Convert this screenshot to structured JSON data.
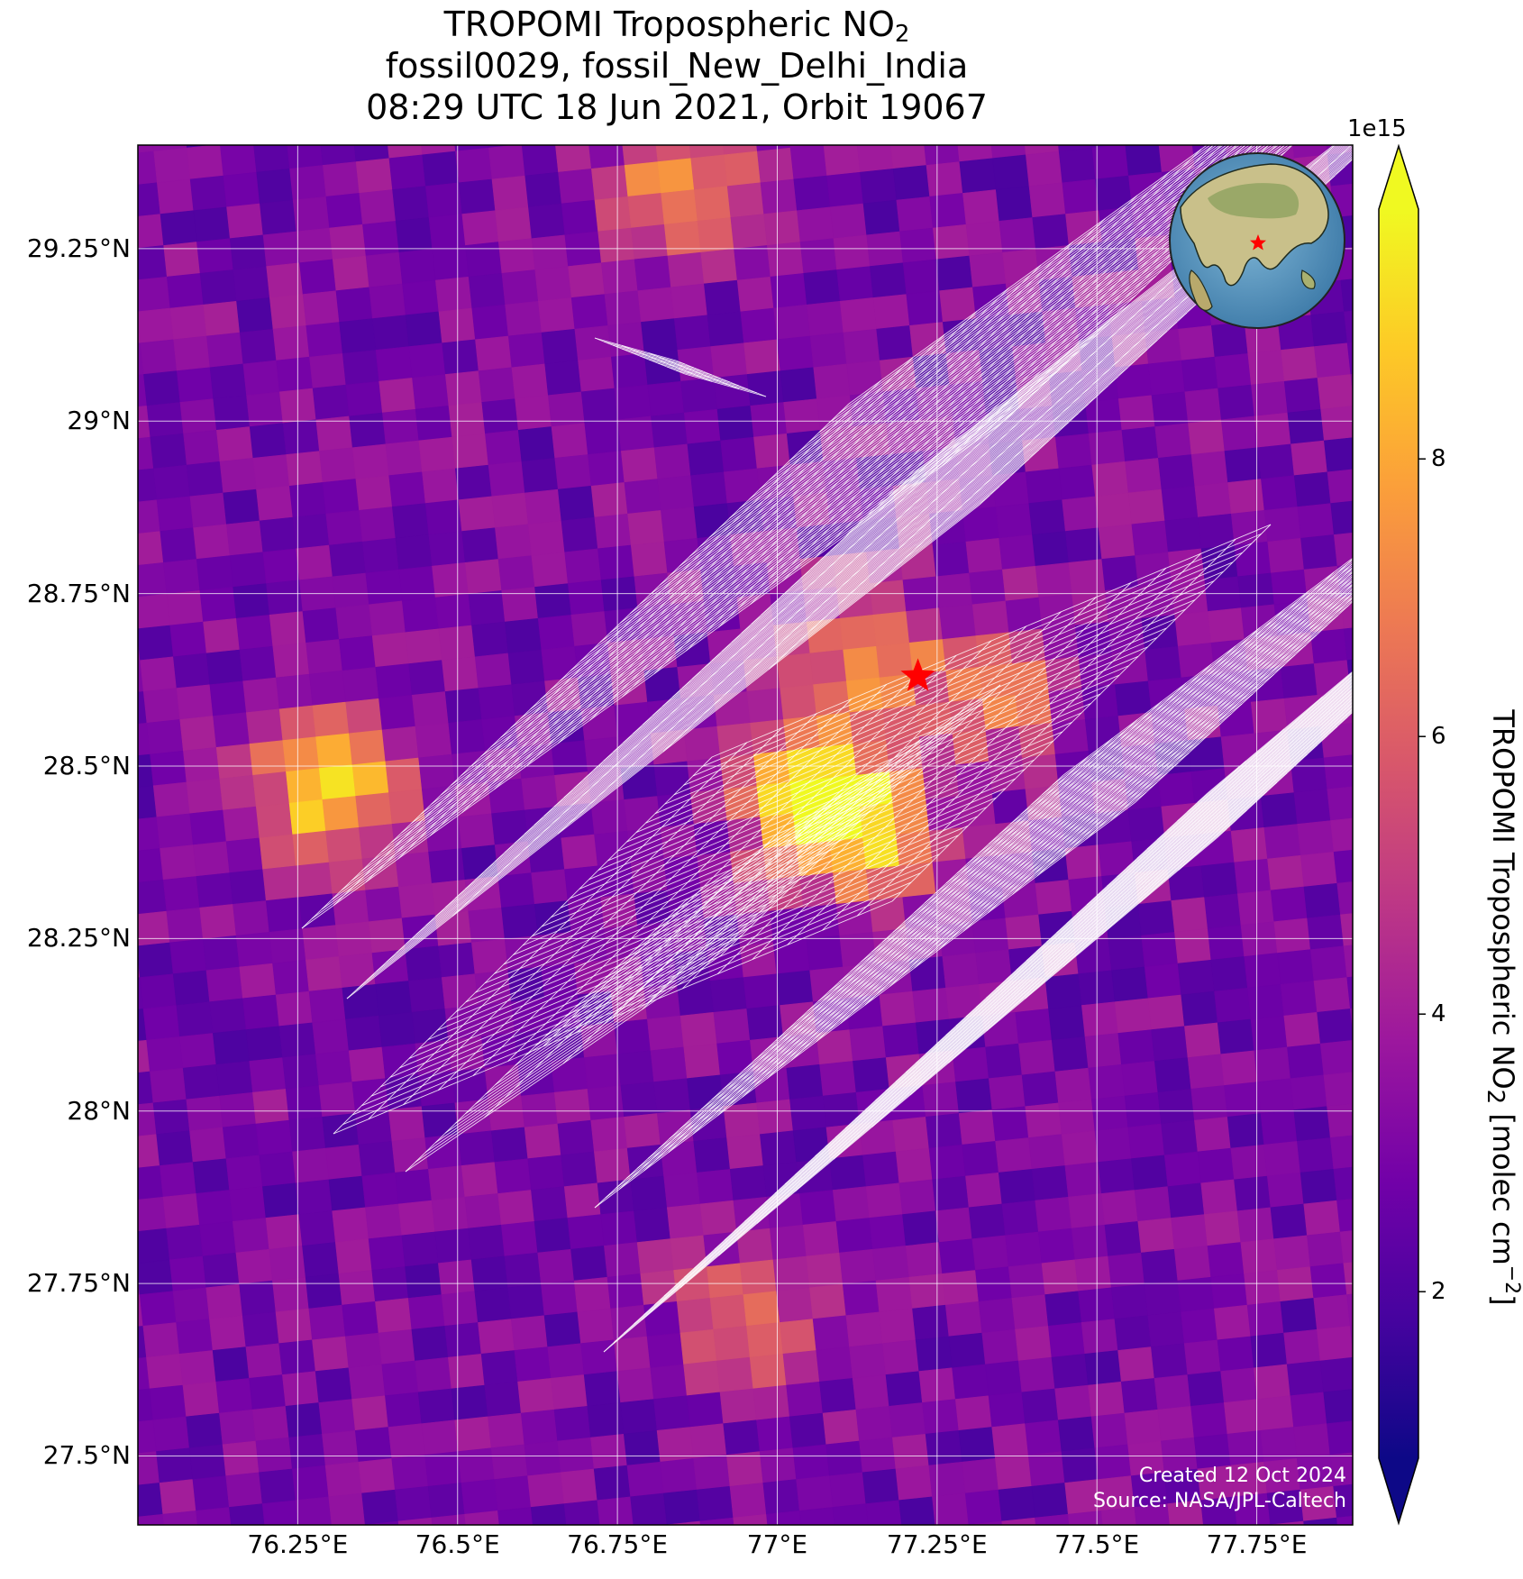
{
  "title": {
    "line1_prefix": "TROPOMI Tropospheric NO",
    "line1_sub": "2",
    "line2": "fossil0029, fossil_New_Delhi_India",
    "line3": "08:29 UTC 18 Jun 2021, Orbit 19067"
  },
  "map": {
    "lat_range": [
      27.4,
      29.4
    ],
    "lon_range": [
      76.0,
      77.9
    ],
    "lat_ticks": [
      {
        "value": 29.25,
        "label": "29.25°N"
      },
      {
        "value": 29.0,
        "label": "29°N"
      },
      {
        "value": 28.75,
        "label": "28.75°N"
      },
      {
        "value": 28.5,
        "label": "28.5°N"
      },
      {
        "value": 28.25,
        "label": "28.25°N"
      },
      {
        "value": 28.0,
        "label": "28°N"
      },
      {
        "value": 27.75,
        "label": "27.75°N"
      },
      {
        "value": 27.5,
        "label": "27.5°N"
      }
    ],
    "lon_ticks": [
      {
        "value": 76.25,
        "label": "76.25°E"
      },
      {
        "value": 76.5,
        "label": "76.5°E"
      },
      {
        "value": 76.75,
        "label": "76.75°E"
      },
      {
        "value": 77.0,
        "label": "77°E"
      },
      {
        "value": 77.25,
        "label": "77.25°E"
      },
      {
        "value": 77.5,
        "label": "77.5°E"
      },
      {
        "value": 77.75,
        "label": "77.75°E"
      }
    ],
    "target": {
      "name": "New Delhi",
      "lat": 28.63,
      "lon": 77.22,
      "marker": "red-star-icon",
      "color": "#ff0000"
    },
    "gridline_color": "#ffffff",
    "footprint_outline_color": "#ffffff",
    "no2_hotspots_1e15": [
      {
        "lat": 28.47,
        "lon": 76.3,
        "value": 9.5
      },
      {
        "lat": 28.45,
        "lon": 77.05,
        "value": 9.5
      },
      {
        "lat": 28.65,
        "lon": 77.15,
        "value": 7.5
      },
      {
        "lat": 28.6,
        "lon": 77.35,
        "value": 6.5
      },
      {
        "lat": 29.35,
        "lon": 76.85,
        "value": 7.5
      },
      {
        "lat": 28.4,
        "lon": 77.15,
        "value": 7.5
      },
      {
        "lat": 27.7,
        "lon": 76.95,
        "value": 6.5
      }
    ],
    "background_value_1e15": 3,
    "inset_globe": {
      "icon": "globe-icon",
      "marker": "red-star-icon"
    }
  },
  "credits": {
    "created": "Created 12 Oct 2024",
    "source": "Source: NASA/JPL-Caltech"
  },
  "colorbar": {
    "colormap": "plasma",
    "colors": [
      "#0d0887",
      "#46039f",
      "#7201a8",
      "#9c179e",
      "#bd3786",
      "#d8576b",
      "#ed7953",
      "#fb9f3a",
      "#fdca26",
      "#f0f921"
    ],
    "range": [
      0.8,
      9.8
    ],
    "extend": "both",
    "exponent_label": "1e15",
    "ticks": [
      {
        "value": 2,
        "label": "2"
      },
      {
        "value": 4,
        "label": "4"
      },
      {
        "value": 6,
        "label": "6"
      },
      {
        "value": 8,
        "label": "8"
      }
    ],
    "label_prefix": "TROPOMI Tropospheric NO",
    "label_sub": "2",
    "label_mid": " [molec cm",
    "label_sup": "−2",
    "label_suffix": "]"
  }
}
